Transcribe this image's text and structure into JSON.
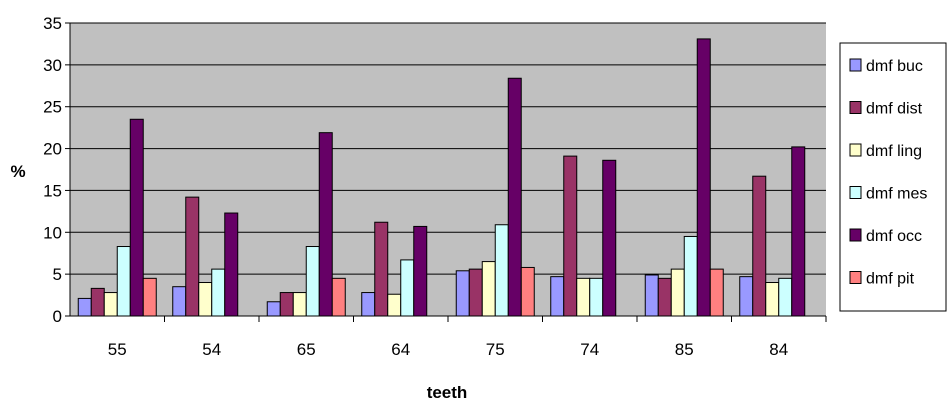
{
  "chart_data": {
    "type": "bar",
    "title": "",
    "xlabel": "teeth",
    "ylabel": "%",
    "ylim": [
      0,
      35
    ],
    "yticks": [
      "0",
      "5",
      "10",
      "15",
      "20",
      "25",
      "30",
      "35"
    ],
    "categories": [
      "55",
      "54",
      "65",
      "64",
      "75",
      "74",
      "85",
      "84"
    ],
    "grid": true,
    "legend_position": "right",
    "plot_background": "#c0c0c0",
    "series": [
      {
        "name": "dmf buc",
        "color": "#9999ff",
        "values": [
          2.1,
          3.5,
          1.7,
          2.8,
          5.4,
          4.7,
          4.9,
          4.7
        ]
      },
      {
        "name": "dmf dist",
        "color": "#993366",
        "values": [
          3.3,
          14.2,
          2.8,
          11.2,
          5.6,
          19.1,
          4.5,
          16.7
        ]
      },
      {
        "name": "dmf ling",
        "color": "#ffffcc",
        "values": [
          2.8,
          4.0,
          2.8,
          2.6,
          6.5,
          4.5,
          5.6,
          4.0
        ]
      },
      {
        "name": "dmf mes",
        "color": "#ccffff",
        "values": [
          8.3,
          5.6,
          8.3,
          6.7,
          10.9,
          4.5,
          9.5,
          4.5
        ]
      },
      {
        "name": "dmf occ",
        "color": "#660066",
        "values": [
          23.5,
          12.3,
          21.9,
          10.7,
          28.4,
          18.6,
          33.1,
          20.2
        ]
      },
      {
        "name": "dmf pit",
        "color": "#ff8080",
        "values": [
          4.5,
          0,
          4.5,
          0,
          5.8,
          0,
          5.6,
          0
        ]
      }
    ]
  }
}
